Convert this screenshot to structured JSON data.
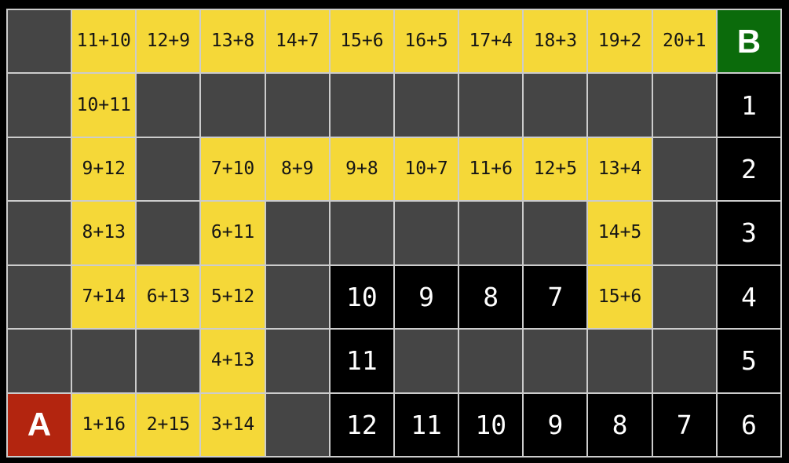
{
  "board": {
    "columns": 12,
    "rows_count": 7,
    "start_label": "A",
    "goal_label": "B",
    "colors": {
      "background": "#000000",
      "gridline": "#cccccc",
      "wall": "#454545",
      "path": "#f5d838",
      "path_text": "#151515",
      "count_bg": "#000000",
      "count_text": "#ffffff",
      "start": "#b3250f",
      "goal": "#0b6b0b",
      "label_text": "#ffffff"
    },
    "rows": [
      [
        {
          "type": "wall"
        },
        {
          "type": "path",
          "label": "11+10"
        },
        {
          "type": "path",
          "label": "12+9"
        },
        {
          "type": "path",
          "label": "13+8"
        },
        {
          "type": "path",
          "label": "14+7"
        },
        {
          "type": "path",
          "label": "15+6"
        },
        {
          "type": "path",
          "label": "16+5"
        },
        {
          "type": "path",
          "label": "17+4"
        },
        {
          "type": "path",
          "label": "18+3"
        },
        {
          "type": "path",
          "label": "19+2"
        },
        {
          "type": "path",
          "label": "20+1"
        },
        {
          "type": "goal",
          "label": "B"
        }
      ],
      [
        {
          "type": "wall"
        },
        {
          "type": "path",
          "label": "10+11"
        },
        {
          "type": "wall"
        },
        {
          "type": "wall"
        },
        {
          "type": "wall"
        },
        {
          "type": "wall"
        },
        {
          "type": "wall"
        },
        {
          "type": "wall"
        },
        {
          "type": "wall"
        },
        {
          "type": "wall"
        },
        {
          "type": "wall"
        },
        {
          "type": "count",
          "label": "1"
        }
      ],
      [
        {
          "type": "wall"
        },
        {
          "type": "path",
          "label": "9+12"
        },
        {
          "type": "wall"
        },
        {
          "type": "path",
          "label": "7+10"
        },
        {
          "type": "path",
          "label": "8+9"
        },
        {
          "type": "path",
          "label": "9+8"
        },
        {
          "type": "path",
          "label": "10+7"
        },
        {
          "type": "path",
          "label": "11+6"
        },
        {
          "type": "path",
          "label": "12+5"
        },
        {
          "type": "path",
          "label": "13+4"
        },
        {
          "type": "wall"
        },
        {
          "type": "count",
          "label": "2"
        }
      ],
      [
        {
          "type": "wall"
        },
        {
          "type": "path",
          "label": "8+13"
        },
        {
          "type": "wall"
        },
        {
          "type": "path",
          "label": "6+11"
        },
        {
          "type": "wall"
        },
        {
          "type": "wall"
        },
        {
          "type": "wall"
        },
        {
          "type": "wall"
        },
        {
          "type": "wall"
        },
        {
          "type": "path",
          "label": "14+5"
        },
        {
          "type": "wall"
        },
        {
          "type": "count",
          "label": "3"
        }
      ],
      [
        {
          "type": "wall"
        },
        {
          "type": "path",
          "label": "7+14"
        },
        {
          "type": "path",
          "label": "6+13"
        },
        {
          "type": "path",
          "label": "5+12"
        },
        {
          "type": "wall"
        },
        {
          "type": "count",
          "label": "10"
        },
        {
          "type": "count",
          "label": "9"
        },
        {
          "type": "count",
          "label": "8"
        },
        {
          "type": "count",
          "label": "7"
        },
        {
          "type": "path",
          "label": "15+6"
        },
        {
          "type": "wall"
        },
        {
          "type": "count",
          "label": "4"
        }
      ],
      [
        {
          "type": "wall"
        },
        {
          "type": "wall"
        },
        {
          "type": "wall"
        },
        {
          "type": "path",
          "label": "4+13"
        },
        {
          "type": "wall"
        },
        {
          "type": "count",
          "label": "11"
        },
        {
          "type": "wall"
        },
        {
          "type": "wall"
        },
        {
          "type": "wall"
        },
        {
          "type": "wall"
        },
        {
          "type": "wall"
        },
        {
          "type": "count",
          "label": "5"
        }
      ],
      [
        {
          "type": "start",
          "label": "A"
        },
        {
          "type": "path",
          "label": "1+16"
        },
        {
          "type": "path",
          "label": "2+15"
        },
        {
          "type": "path",
          "label": "3+14"
        },
        {
          "type": "wall"
        },
        {
          "type": "count",
          "label": "12"
        },
        {
          "type": "count",
          "label": "11"
        },
        {
          "type": "count",
          "label": "10"
        },
        {
          "type": "count",
          "label": "9"
        },
        {
          "type": "count",
          "label": "8"
        },
        {
          "type": "count",
          "label": "7"
        },
        {
          "type": "count",
          "label": "6"
        }
      ]
    ]
  }
}
